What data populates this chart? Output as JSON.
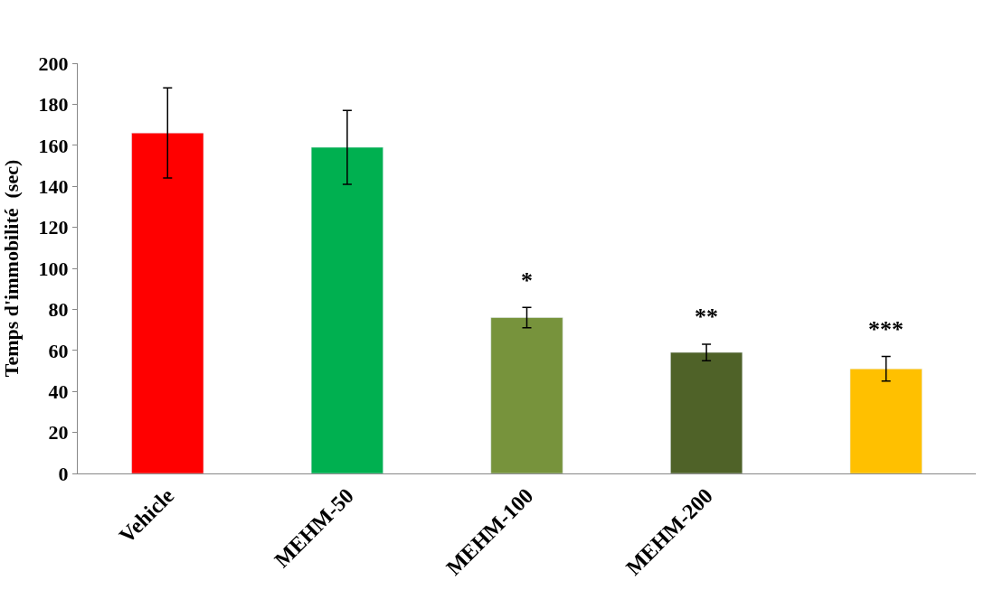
{
  "chart_data": {
    "type": "bar",
    "ylabel": "Temps d'immobilité  (sec)",
    "categories": [
      "Vehicle",
      "MEHM-50",
      "MEHM-100",
      "MEHM-200",
      null
    ],
    "values": [
      166,
      159,
      76,
      59,
      51
    ],
    "errors": [
      22,
      18,
      5,
      4,
      6
    ],
    "colors": [
      "#ff0000",
      "#00b050",
      "#77933c",
      "#4f6228",
      "#ffc000"
    ],
    "ylim": [
      0,
      200
    ],
    "yticks": [
      0,
      20,
      40,
      60,
      80,
      100,
      120,
      140,
      160,
      180,
      200
    ],
    "annotations": [
      "*",
      "**",
      "***"
    ]
  }
}
